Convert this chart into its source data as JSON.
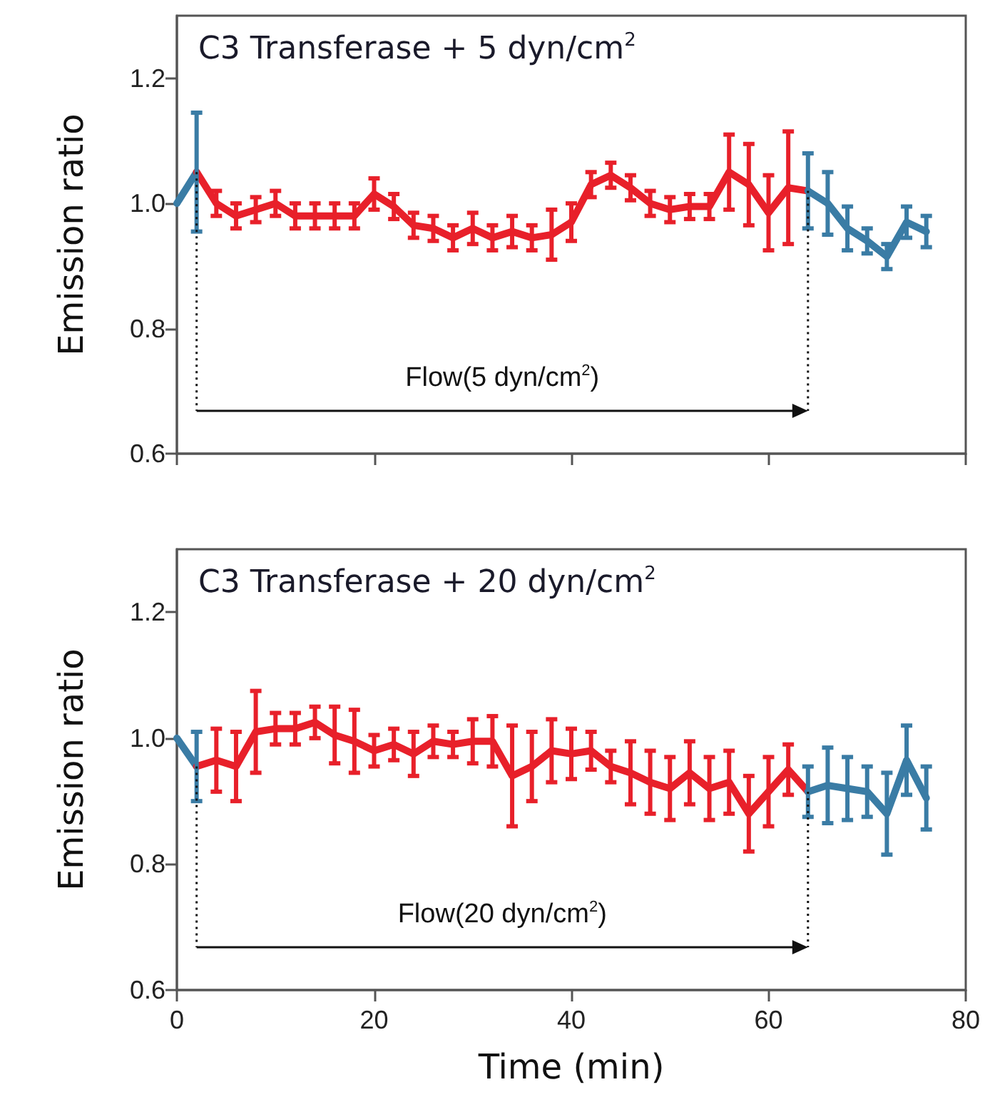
{
  "chart_data": [
    {
      "type": "line",
      "title": "C3 Transferase + 5 dyn/cm$^{2}$",
      "ylabel": "Emission ratio",
      "xlim": [
        0,
        80
      ],
      "xticks": [
        0,
        20,
        40,
        60,
        80
      ],
      "ylim": [
        0.6,
        1.3
      ],
      "yticks": [
        0.6,
        0.8,
        {
          "value": 1,
          "label": "1.0"
        },
        1.2
      ],
      "tick_labels": "y",
      "grid": false,
      "marker": "none",
      "line_style": "solid",
      "annotations": [
        "Flow(5 dyn/cm$^{2}$)"
      ],
      "ref_lines": [
        {
          "axis": "x",
          "value": 2,
          "line_style": "dotted"
        },
        {
          "axis": "x",
          "value": 64,
          "line_style": "dotted"
        }
      ],
      "series": [
        {
          "color": "#3a7ca5",
          "x": [
            0,
            2
          ],
          "values": [
            1.0,
            1.05
          ],
          "errors": [
            null,
            0.095
          ]
        },
        {
          "color": "#e8202a",
          "x": [
            2,
            4,
            6,
            8,
            10,
            12,
            14,
            16,
            18,
            20,
            22,
            24,
            26,
            28,
            30,
            32,
            34,
            36,
            38,
            40,
            42,
            44,
            46,
            48,
            50,
            52,
            54,
            56,
            58,
            60,
            62,
            64
          ],
          "values": [
            1.05,
            1.0,
            0.98,
            0.99,
            1.0,
            0.98,
            0.98,
            0.98,
            0.98,
            1.015,
            0.995,
            0.965,
            0.96,
            0.945,
            0.96,
            0.945,
            0.955,
            0.945,
            0.95,
            0.97,
            1.03,
            1.045,
            1.025,
            1.0,
            0.99,
            0.995,
            0.995,
            1.05,
            1.03,
            0.985,
            1.025,
            1.02
          ],
          "errors": [
            null,
            0.02,
            0.02,
            0.02,
            0.02,
            0.02,
            0.02,
            0.02,
            0.02,
            0.025,
            0.02,
            0.02,
            0.02,
            0.02,
            0.025,
            0.02,
            0.025,
            0.02,
            0.04,
            0.03,
            0.02,
            0.02,
            0.02,
            0.02,
            0.02,
            0.02,
            0.02,
            0.06,
            0.065,
            0.06,
            0.09,
            null
          ]
        },
        {
          "color": "#3a7ca5",
          "x": [
            64,
            66,
            68,
            70,
            72,
            74,
            76
          ],
          "values": [
            1.02,
            1.0,
            0.96,
            0.94,
            0.915,
            0.97,
            0.955
          ],
          "errors": [
            0.06,
            0.05,
            0.035,
            0.02,
            0.02,
            0.025,
            0.025
          ]
        }
      ]
    },
    {
      "type": "line",
      "title": "C3 Transferase + 20 dyn/cm$^{2}$",
      "xlabel": "Time (min)",
      "ylabel": "Emission ratio",
      "xlim": [
        0,
        80
      ],
      "xticks": [
        0,
        20,
        40,
        60,
        80
      ],
      "ylim": [
        0.6,
        1.3
      ],
      "yticks": [
        0.6,
        0.8,
        {
          "value": 1,
          "label": "1.0"
        },
        1.2
      ],
      "grid": false,
      "marker": "none",
      "line_style": "solid",
      "annotations": [
        "Flow(20 dyn/cm$^{2}$)"
      ],
      "ref_lines": [
        {
          "axis": "x",
          "value": 2,
          "line_style": "dotted"
        },
        {
          "axis": "x",
          "value": 64,
          "line_style": "dotted"
        }
      ],
      "series": [
        {
          "color": "#3a7ca5",
          "x": [
            0,
            2
          ],
          "values": [
            1.0,
            0.955
          ],
          "errors": [
            null,
            0.055
          ]
        },
        {
          "color": "#e8202a",
          "x": [
            2,
            4,
            6,
            8,
            10,
            12,
            14,
            16,
            18,
            20,
            22,
            24,
            26,
            28,
            30,
            32,
            34,
            36,
            38,
            40,
            42,
            44,
            46,
            48,
            50,
            52,
            54,
            56,
            58,
            60,
            62,
            64
          ],
          "values": [
            0.955,
            0.965,
            0.955,
            1.01,
            1.015,
            1.015,
            1.025,
            1.005,
            0.995,
            0.98,
            0.99,
            0.975,
            0.995,
            0.99,
            0.995,
            0.995,
            0.94,
            0.955,
            0.98,
            0.975,
            0.98,
            0.955,
            0.945,
            0.93,
            0.92,
            0.945,
            0.92,
            0.93,
            0.88,
            0.915,
            0.95,
            0.915
          ],
          "errors": [
            null,
            0.05,
            0.055,
            0.065,
            0.025,
            0.025,
            0.025,
            0.045,
            0.05,
            0.025,
            0.025,
            0.035,
            0.025,
            0.02,
            0.035,
            0.04,
            0.08,
            0.055,
            0.05,
            0.04,
            0.03,
            0.025,
            0.05,
            0.05,
            0.05,
            0.05,
            0.05,
            0.05,
            0.06,
            0.055,
            0.04,
            null
          ]
        },
        {
          "color": "#3a7ca5",
          "x": [
            64,
            66,
            68,
            70,
            72,
            74,
            76
          ],
          "values": [
            0.915,
            0.925,
            0.92,
            0.915,
            0.88,
            0.965,
            0.905
          ],
          "errors": [
            0.04,
            0.06,
            0.05,
            0.04,
            0.065,
            0.055,
            0.05
          ]
        }
      ]
    }
  ]
}
